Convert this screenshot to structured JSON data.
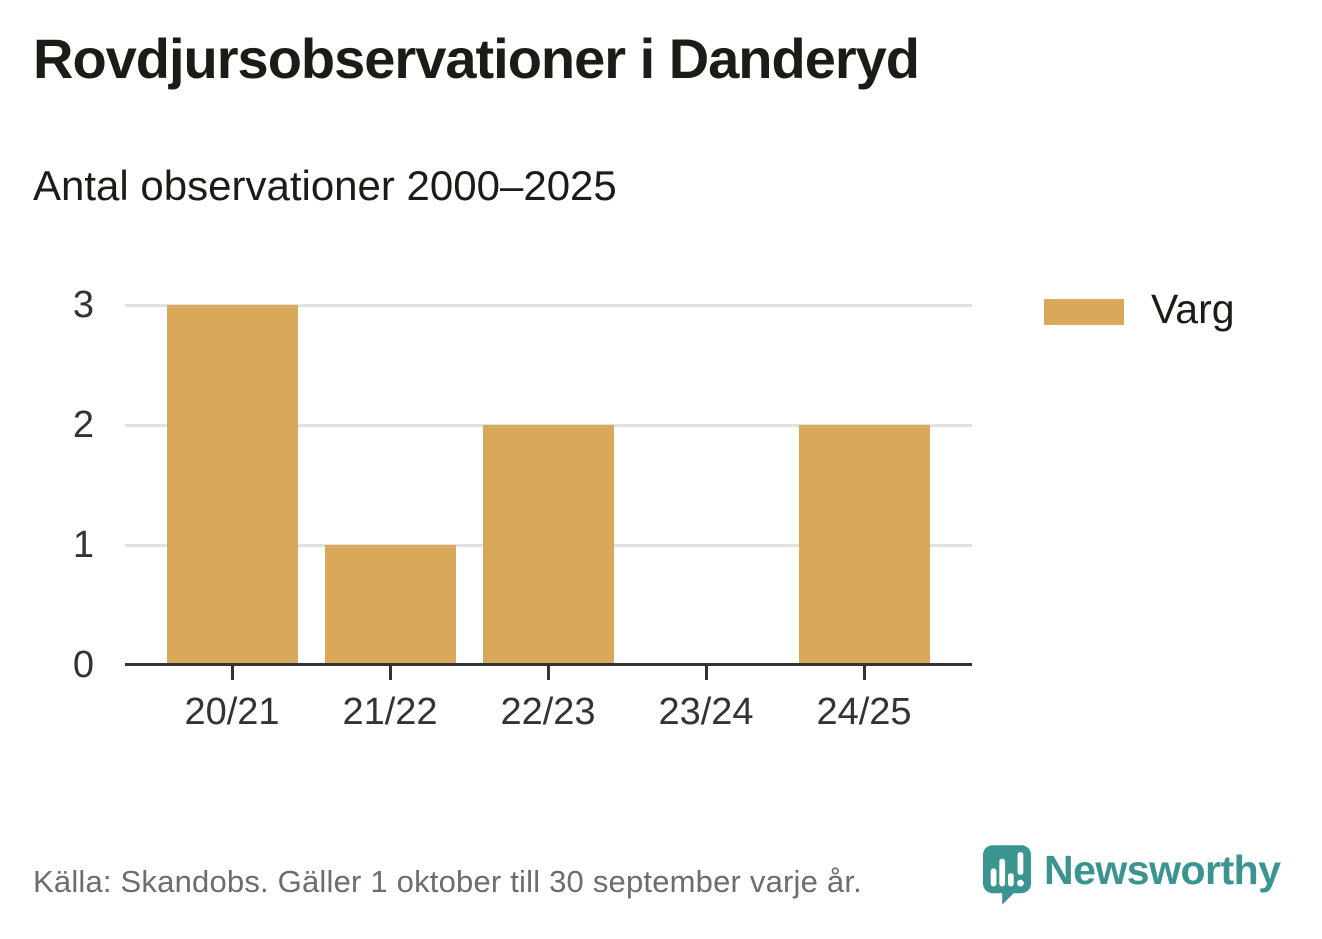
{
  "title": "Rovdjursobservationer i Danderyd",
  "subtitle": "Antal observationer 2000–2025",
  "legend": {
    "label": "Varg",
    "swatch_color": "#D9A85A"
  },
  "footer": {
    "source": "Källa: Skandobs. Gäller 1 oktober till 30 september varje år."
  },
  "brand": {
    "name": "Newsworthy",
    "color": "#3A9490",
    "icon": "newsworthy-speech-bubble-bars-icon"
  },
  "colors": {
    "bar": "#D9A85A",
    "axis": "#333333",
    "grid": "#E1E1E1",
    "title_text": "#1A1C15",
    "muted_text": "#6B6C74"
  },
  "chart_data": {
    "type": "bar",
    "title": "Rovdjursobservationer i Danderyd",
    "subtitle": "Antal observationer 2000–2025",
    "categories": [
      "20/21",
      "21/22",
      "22/23",
      "23/24",
      "24/25"
    ],
    "series": [
      {
        "name": "Varg",
        "color": "#D9A85A",
        "values": [
          3,
          1,
          2,
          0,
          2
        ]
      }
    ],
    "xlabel": "",
    "ylabel": "",
    "yticks": [
      0,
      1,
      2,
      3
    ],
    "ylim": [
      0,
      3
    ],
    "grid": true,
    "legend_position": "top-right",
    "source": "Källa: Skandobs. Gäller 1 oktober till 30 september varje år."
  }
}
